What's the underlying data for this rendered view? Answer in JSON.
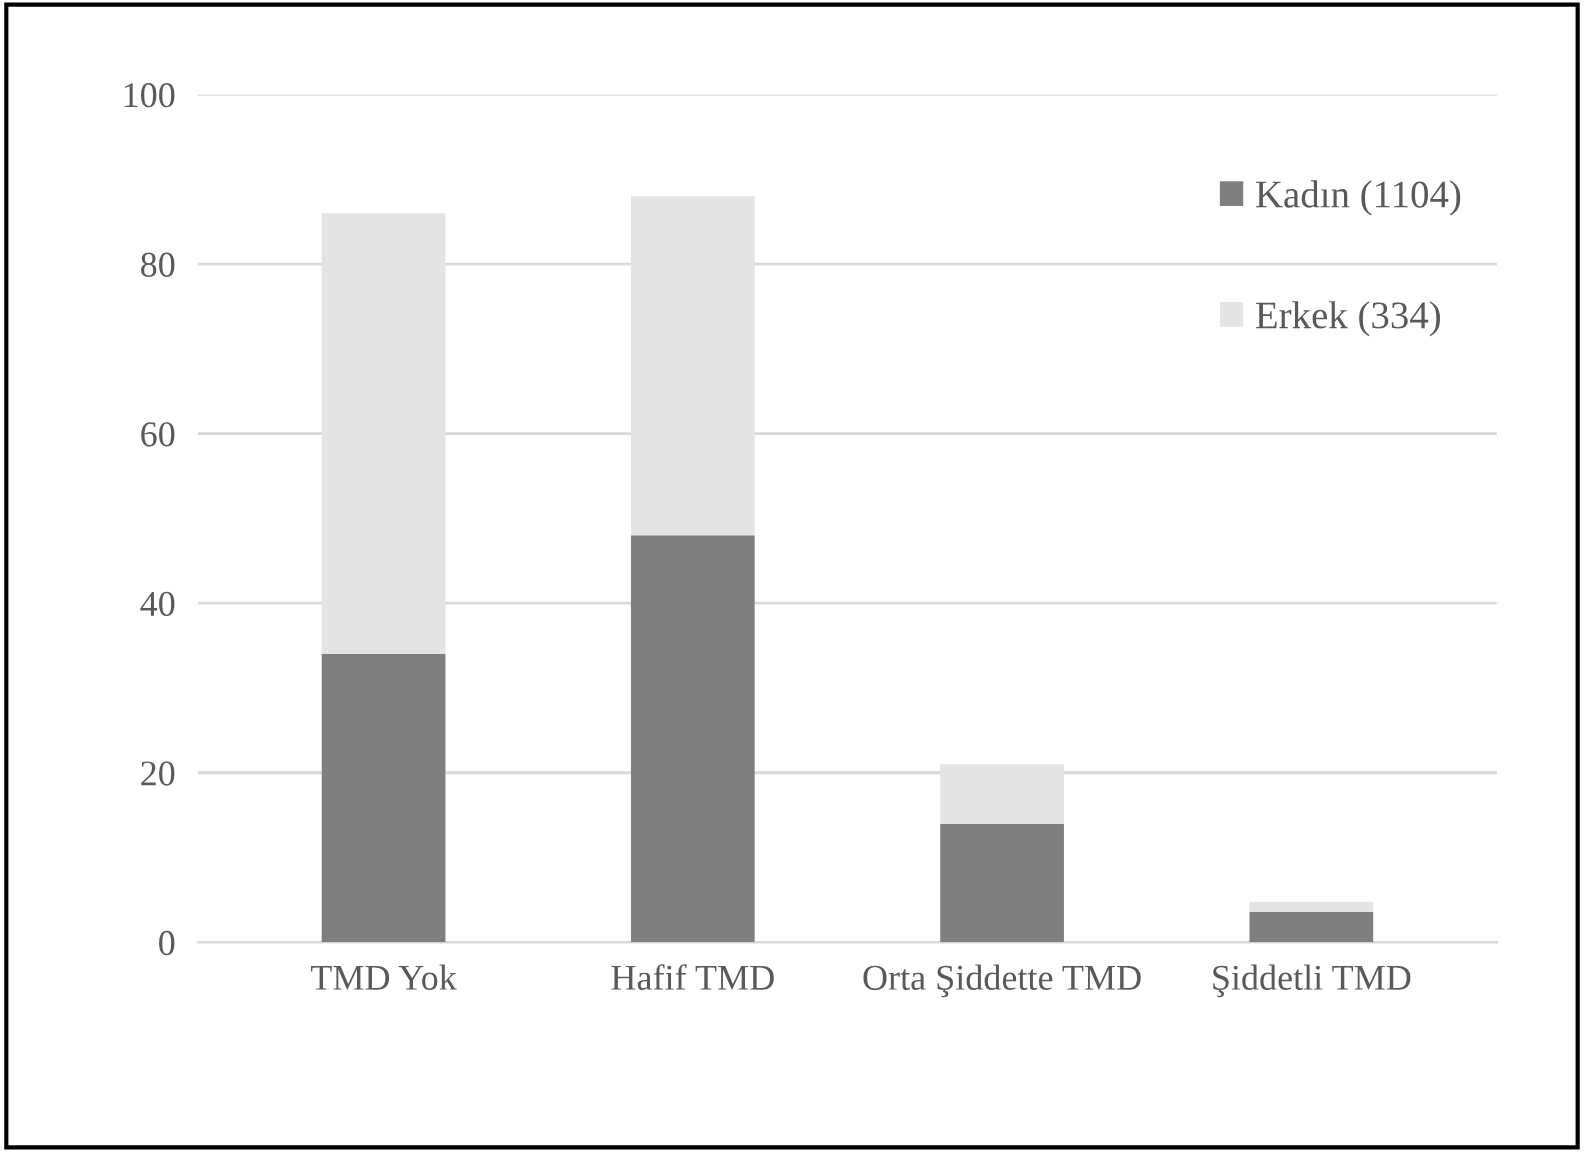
{
  "chart_data": {
    "type": "bar",
    "stacked": true,
    "categories": [
      "TMD Yok",
      "Hafif TMD",
      "Orta Şiddette TMD",
      "Şiddetli TMD"
    ],
    "series": [
      {
        "name": "Kadın (1104)",
        "color": "#7f7f7f",
        "values": [
          34,
          48,
          14,
          3.6
        ]
      },
      {
        "name": "Erkek (334)",
        "color": "#e4e4e4",
        "values": [
          52,
          40,
          7,
          1.2
        ]
      }
    ],
    "ylim": [
      0,
      100
    ],
    "yticks": [
      0,
      20,
      40,
      60,
      80,
      100
    ],
    "grid": "y",
    "legend": "top right"
  }
}
